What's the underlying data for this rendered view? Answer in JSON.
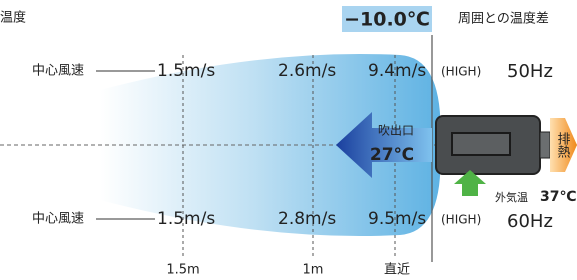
{
  "header": {
    "left": "温度",
    "temp_diff": "−10.0℃",
    "temp_diff_caption": "周囲との温度差"
  },
  "rows": [
    {
      "label": "中心風速",
      "speeds": [
        "1.5m/s",
        "2.6m/s",
        "9.4m/s"
      ],
      "mode": "(HIGH)",
      "freq": "50Hz"
    },
    {
      "label": "中心風速",
      "speeds": [
        "1.5m/s",
        "2.8m/s",
        "9.5m/s"
      ],
      "mode": "(HIGH)",
      "freq": "60Hz"
    }
  ],
  "outlet": {
    "label": "吹出口",
    "temp": "27℃"
  },
  "exhaust": "排熱",
  "outside": {
    "label": "外気温",
    "temp": "37℃"
  },
  "distances": [
    "1.5m",
    "1m",
    "直近"
  ]
}
